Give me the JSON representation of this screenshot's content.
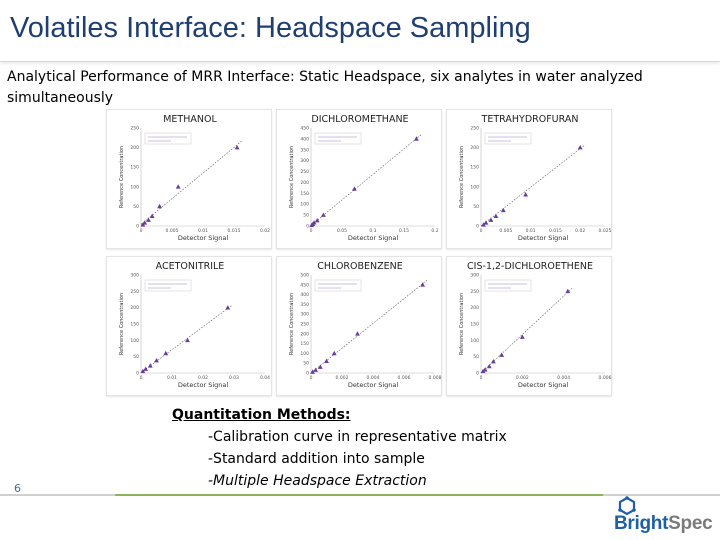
{
  "slide": {
    "title": "Volatiles Interface: Headspace Sampling",
    "subtitle": "Analytical Performance of MRR Interface: Static Headspace, six analytes in water analyzed simultaneously",
    "page_number": "6"
  },
  "methods": {
    "heading": "Quantitation Methods:",
    "items": [
      "-Calibration curve in representative matrix",
      "-Standard addition into sample",
      "-Multiple Headspace Extraction"
    ]
  },
  "logo": {
    "part1": "Bright",
    "part2": "Spec"
  },
  "colors": {
    "title": "#1f3f73",
    "marker": "#6a3d9a",
    "accent_green": "#8fb35a",
    "logo_blue": "#1f5fa6"
  },
  "chart_data": [
    {
      "type": "scatter",
      "title": "METHANOL",
      "xlabel": "Detector Signal",
      "ylabel": "Reference Concentration",
      "x_ticks": [
        "0",
        "0.005",
        "0.01",
        "0.015",
        "0.02"
      ],
      "y_ticks": [
        "0",
        "50",
        "100",
        "150",
        "200",
        "250"
      ],
      "xlim": [
        0,
        0.02
      ],
      "ylim": [
        0,
        250
      ],
      "x": [
        0.0003,
        0.0006,
        0.0012,
        0.0018,
        0.003,
        0.006,
        0.0155
      ],
      "y": [
        3,
        8,
        15,
        25,
        50,
        100,
        200
      ],
      "trendline": true,
      "legend": "top-left"
    },
    {
      "type": "scatter",
      "title": "DICHLOROMETHANE",
      "xlabel": "Detector Signal",
      "ylabel": "Reference Concentration",
      "x_ticks": [
        "0",
        "0.05",
        "0.1",
        "0.15",
        "0.2"
      ],
      "y_ticks": [
        "0",
        "50",
        "100",
        "150",
        "200",
        "250",
        "300",
        "350",
        "400",
        "450"
      ],
      "xlim": [
        0,
        0.2
      ],
      "ylim": [
        0,
        450
      ],
      "x": [
        0.001,
        0.003,
        0.005,
        0.01,
        0.02,
        0.07,
        0.17
      ],
      "y": [
        3,
        8,
        15,
        25,
        50,
        170,
        400
      ],
      "trendline": true,
      "legend": "top-left"
    },
    {
      "type": "scatter",
      "title": "TETRAHYDROFURAN",
      "xlabel": "Detector Signal",
      "ylabel": "Reference Concentration",
      "x_ticks": [
        "0",
        "0.005",
        "0.01",
        "0.015",
        "0.02",
        "0.025"
      ],
      "y_ticks": [
        "0",
        "50",
        "100",
        "150",
        "200",
        "250"
      ],
      "xlim": [
        0,
        0.025
      ],
      "ylim": [
        0,
        250
      ],
      "x": [
        0.0005,
        0.001,
        0.002,
        0.003,
        0.0045,
        0.009,
        0.02
      ],
      "y": [
        3,
        8,
        15,
        25,
        40,
        80,
        200
      ],
      "trendline": true,
      "legend": "top-left"
    },
    {
      "type": "scatter",
      "title": "ACETONITRILE",
      "xlabel": "Detector Signal",
      "ylabel": "Reference Concentration",
      "x_ticks": [
        "0",
        "0.01",
        "0.02",
        "0.03",
        "0.04"
      ],
      "y_ticks": [
        "0",
        "50",
        "100",
        "150",
        "200",
        "250",
        "300"
      ],
      "xlim": [
        0,
        0.04
      ],
      "ylim": [
        0,
        300
      ],
      "x": [
        0.0006,
        0.0015,
        0.003,
        0.005,
        0.008,
        0.015,
        0.028
      ],
      "y": [
        5,
        12,
        22,
        38,
        60,
        100,
        200
      ],
      "trendline": true,
      "legend": "top-left"
    },
    {
      "type": "scatter",
      "title": "CHLOROBENZENE",
      "xlabel": "Detector Signal",
      "ylabel": "Reference Concentration",
      "x_ticks": [
        "0",
        "0.002",
        "0.004",
        "0.006",
        "0.008"
      ],
      "y_ticks": [
        "0",
        "50",
        "100",
        "150",
        "200",
        "250",
        "300",
        "350",
        "400",
        "450",
        "500"
      ],
      "xlim": [
        0,
        0.008
      ],
      "ylim": [
        0,
        500
      ],
      "x": [
        0.0001,
        0.0003,
        0.0006,
        0.001,
        0.0015,
        0.003,
        0.0072
      ],
      "y": [
        5,
        15,
        30,
        60,
        100,
        200,
        450
      ],
      "trendline": true,
      "legend": "top-left"
    },
    {
      "type": "scatter",
      "title": "CIS-1,2-DICHLOROETHENE",
      "xlabel": "Detector Signal",
      "ylabel": "Reference Concentration",
      "x_ticks": [
        "0",
        "0.002",
        "0.004",
        "0.006"
      ],
      "y_ticks": [
        "0",
        "50",
        "100",
        "150",
        "200",
        "250",
        "300"
      ],
      "xlim": [
        0,
        0.006
      ],
      "ylim": [
        0,
        300
      ],
      "x": [
        0.0001,
        0.0002,
        0.0004,
        0.0006,
        0.001,
        0.002,
        0.0042
      ],
      "y": [
        5,
        10,
        20,
        35,
        55,
        110,
        250
      ],
      "trendline": true,
      "legend": "top-left"
    }
  ]
}
